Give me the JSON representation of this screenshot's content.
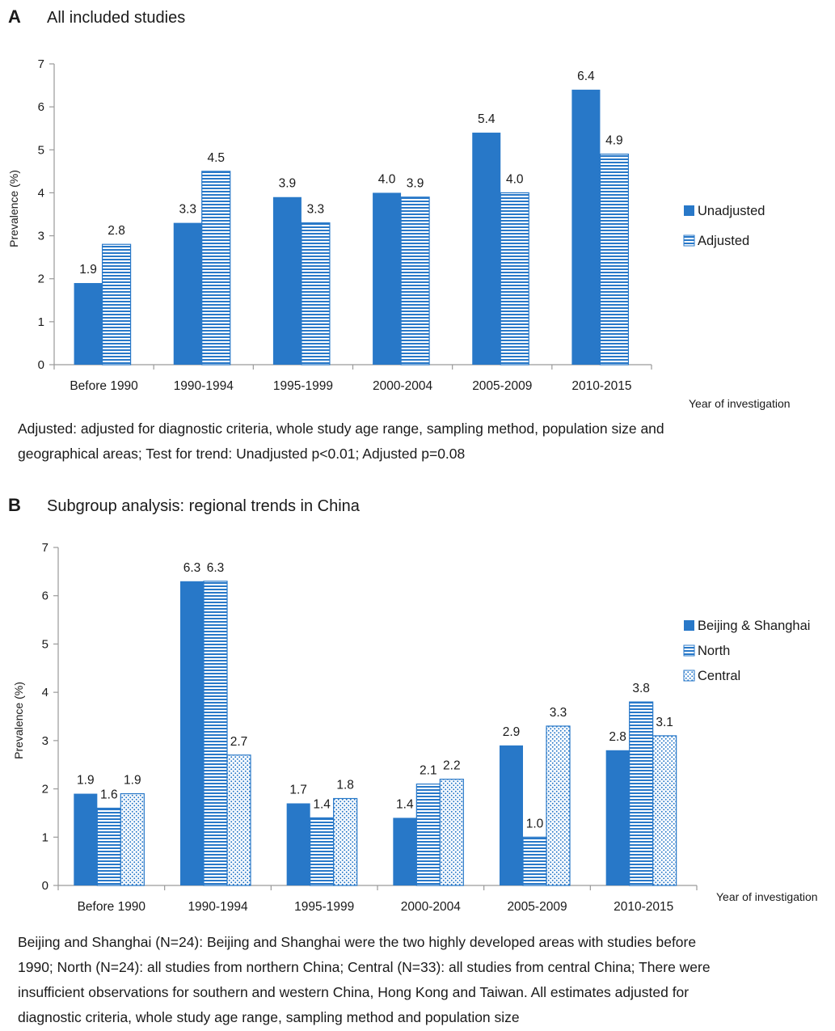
{
  "chart_data": [
    {
      "type": "bar",
      "panel_letter": "A",
      "title": "All included studies",
      "ylabel": "Prevalence (%)",
      "xlabel": "Year of investigation",
      "ylim": [
        0,
        7
      ],
      "yticks": [
        0,
        1,
        2,
        3,
        4,
        5,
        6,
        7
      ],
      "categories": [
        "Before 1990",
        "1990-1994",
        "1995-1999",
        "2000-2004",
        "2005-2009",
        "2010-2015"
      ],
      "series": [
        {
          "name": "Unadjusted",
          "fill": "solid",
          "color": "#2878c8",
          "values": [
            1.9,
            3.3,
            3.9,
            4.0,
            5.4,
            6.4
          ],
          "labels": [
            "1.9",
            "3.3",
            "3.9",
            "4.0",
            "5.4",
            "6.4"
          ]
        },
        {
          "name": "Adjusted",
          "fill": "horizontal-stripes",
          "color": "#2878c8",
          "values": [
            2.8,
            4.5,
            3.3,
            3.9,
            4.0,
            4.9
          ],
          "labels": [
            "2.8",
            "4.5",
            "3.3",
            "3.9",
            "4.0",
            "4.9"
          ]
        }
      ],
      "legend_position": "right",
      "grid": false,
      "caption_lines": [
        "Adjusted: adjusted for diagnostic criteria, whole study age range, sampling method, population size and",
        "geographical areas; Test for trend: Unadjusted p<0.01; Adjusted p=0.08"
      ]
    },
    {
      "type": "bar",
      "panel_letter": "B",
      "title": "Subgroup analysis: regional trends in China",
      "ylabel": "Prevalence (%)",
      "xlabel": "Year of investigation",
      "ylim": [
        0,
        7
      ],
      "yticks": [
        0,
        1,
        2,
        3,
        4,
        5,
        6,
        7
      ],
      "categories": [
        "Before 1990",
        "1990-1994",
        "1995-1999",
        "2000-2004",
        "2005-2009",
        "2010-2015"
      ],
      "series": [
        {
          "name": "Beijing & Shanghai",
          "fill": "solid",
          "color": "#2878c8",
          "values": [
            1.9,
            6.3,
            1.7,
            1.4,
            2.9,
            2.8
          ],
          "labels": [
            "1.9",
            "6.3",
            "1.7",
            "1.4",
            "2.9",
            "2.8"
          ]
        },
        {
          "name": "North",
          "fill": "horizontal-stripes",
          "color": "#2878c8",
          "values": [
            1.6,
            6.3,
            1.4,
            2.1,
            1.0,
            3.8
          ],
          "labels": [
            "1.6",
            "6.3",
            "1.4",
            "2.1",
            "1.0",
            "3.8"
          ]
        },
        {
          "name": "Central",
          "fill": "dots",
          "color": "#2878c8",
          "values": [
            1.9,
            2.7,
            1.8,
            2.2,
            3.3,
            3.1
          ],
          "labels": [
            "1.9",
            "2.7",
            "1.8",
            "2.2",
            "3.3",
            "3.1"
          ]
        }
      ],
      "legend_position": "right",
      "grid": false,
      "caption_lines": [
        "Beijing and Shanghai (N=24): Beijing and Shanghai were the two highly developed areas with studies before",
        "1990; North (N=24): all studies from northern China; Central (N=33): all studies from central China; There were",
        "insufficient observations for southern and western China, Hong Kong and Taiwan. All estimates adjusted for",
        "diagnostic criteria, whole study age range, sampling method and population size"
      ]
    }
  ]
}
